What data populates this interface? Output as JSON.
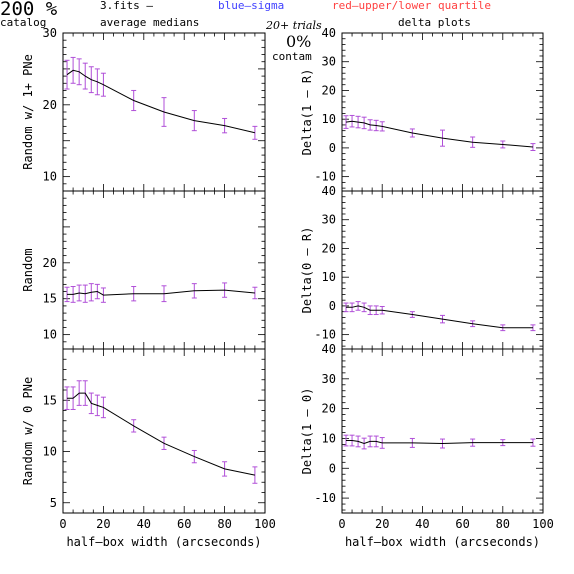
{
  "header": {
    "percent": "200 %",
    "catalog": "catalog",
    "file": "3.fits  –",
    "medians": "average medians",
    "blue_note": "blue–sigma",
    "red_note": "red–upper/lower quartile",
    "trials": "20+ trials",
    "delta_plots": "delta plots",
    "contam_pct": "0%",
    "contam": "contam"
  },
  "colors": {
    "line": "#000000",
    "sigma": "#4040ff",
    "quartile": "#ff4040",
    "errorbar": "#b04fd8"
  },
  "chart_data": [
    {
      "type": "line",
      "panel": "left-top",
      "ylabel": "Random w/ 1+ PNe",
      "xlabel": "",
      "xlim": [
        0,
        100
      ],
      "ylim": [
        8,
        30
      ],
      "xticks": [],
      "yticks": [
        10,
        20,
        30
      ],
      "x": [
        2,
        5,
        8,
        11,
        14,
        17,
        20,
        35,
        50,
        65,
        80,
        95
      ],
      "y": [
        24.2,
        24.8,
        24.6,
        24.0,
        23.5,
        23.2,
        22.8,
        20.6,
        19.0,
        17.8,
        17.1,
        16.1
      ],
      "err": [
        2.0,
        1.8,
        1.8,
        1.8,
        1.8,
        1.8,
        1.6,
        1.4,
        2.0,
        1.4,
        1.0,
        0.9
      ]
    },
    {
      "type": "line",
      "panel": "right-top",
      "ylabel": "Delta(1 – R)",
      "xlabel": "",
      "xlim": [
        0,
        100
      ],
      "ylim": [
        -15,
        40
      ],
      "xticks": [],
      "yticks": [
        -10,
        0,
        10,
        20,
        30,
        40
      ],
      "x": [
        2,
        5,
        8,
        11,
        14,
        17,
        20,
        35,
        50,
        65,
        80,
        95
      ],
      "y": [
        9.0,
        9.3,
        9.0,
        8.7,
        8.0,
        7.8,
        7.5,
        5.2,
        3.4,
        2.0,
        1.2,
        0.3
      ],
      "err": [
        2.2,
        2.0,
        2.0,
        2.0,
        1.8,
        1.8,
        1.6,
        1.4,
        2.8,
        1.8,
        1.2,
        1.2
      ]
    },
    {
      "type": "line",
      "panel": "left-middle",
      "ylabel": "Random",
      "xlabel": "",
      "xlim": [
        0,
        100
      ],
      "ylim": [
        8,
        30
      ],
      "xticks": [],
      "yticks": [
        10,
        15,
        20
      ],
      "x": [
        2,
        5,
        8,
        11,
        14,
        17,
        20,
        35,
        50,
        65,
        80,
        95
      ],
      "y": [
        15.6,
        15.6,
        15.8,
        15.7,
        15.9,
        16.0,
        15.5,
        15.7,
        15.7,
        16.1,
        16.2,
        15.8
      ],
      "err": [
        1.0,
        1.1,
        1.1,
        1.2,
        1.2,
        1.0,
        1.0,
        1.0,
        1.1,
        1.0,
        1.0,
        0.8
      ]
    },
    {
      "type": "line",
      "panel": "right-middle",
      "ylabel": "Delta(0 – R)",
      "xlabel": "",
      "xlim": [
        0,
        100
      ],
      "ylim": [
        -15,
        40
      ],
      "xticks": [],
      "yticks": [
        -10,
        0,
        10,
        20,
        30,
        40
      ],
      "x": [
        2,
        5,
        8,
        11,
        14,
        17,
        20,
        35,
        50,
        65,
        80,
        95
      ],
      "y": [
        -0.5,
        -0.5,
        0.0,
        -0.5,
        -1.5,
        -1.5,
        -1.5,
        -3.0,
        -4.6,
        -6.2,
        -7.6,
        -7.6
      ],
      "err": [
        1.5,
        1.5,
        1.5,
        1.5,
        1.5,
        1.5,
        1.3,
        1.0,
        1.3,
        1.0,
        1.0,
        1.0
      ]
    },
    {
      "type": "line",
      "panel": "left-bottom",
      "ylabel": "Random w/ 0 PNe",
      "xlabel": "half–box width (arcseconds)",
      "xlim": [
        0,
        100
      ],
      "ylim": [
        4,
        20
      ],
      "xticks": [
        0,
        20,
        40,
        60,
        80,
        100
      ],
      "yticks": [
        5,
        10,
        15
      ],
      "x": [
        2,
        5,
        8,
        11,
        14,
        17,
        20,
        35,
        50,
        65,
        80,
        95
      ],
      "y": [
        15.2,
        15.2,
        15.7,
        15.7,
        14.7,
        14.5,
        14.3,
        12.5,
        10.8,
        9.5,
        8.3,
        7.7
      ],
      "err": [
        1.1,
        1.1,
        1.2,
        1.2,
        1.0,
        1.0,
        1.0,
        0.6,
        0.6,
        0.6,
        0.7,
        0.8
      ]
    },
    {
      "type": "line",
      "panel": "right-bottom",
      "ylabel": "Delta(1 – 0)",
      "xlabel": "half–box width (arcseconds)",
      "xlim": [
        0,
        100
      ],
      "ylim": [
        -15,
        40
      ],
      "xticks": [
        0,
        20,
        40,
        60,
        80,
        100
      ],
      "yticks": [
        -10,
        0,
        10,
        20,
        30,
        40
      ],
      "x": [
        2,
        5,
        8,
        11,
        14,
        17,
        20,
        35,
        50,
        65,
        80,
        95
      ],
      "y": [
        9.3,
        9.3,
        9.0,
        8.3,
        9.0,
        9.0,
        8.5,
        8.5,
        8.3,
        8.6,
        8.6,
        8.6
      ],
      "err": [
        1.8,
        1.8,
        1.8,
        1.8,
        1.8,
        1.8,
        1.8,
        1.5,
        1.5,
        1.2,
        1.0,
        1.2
      ]
    }
  ]
}
